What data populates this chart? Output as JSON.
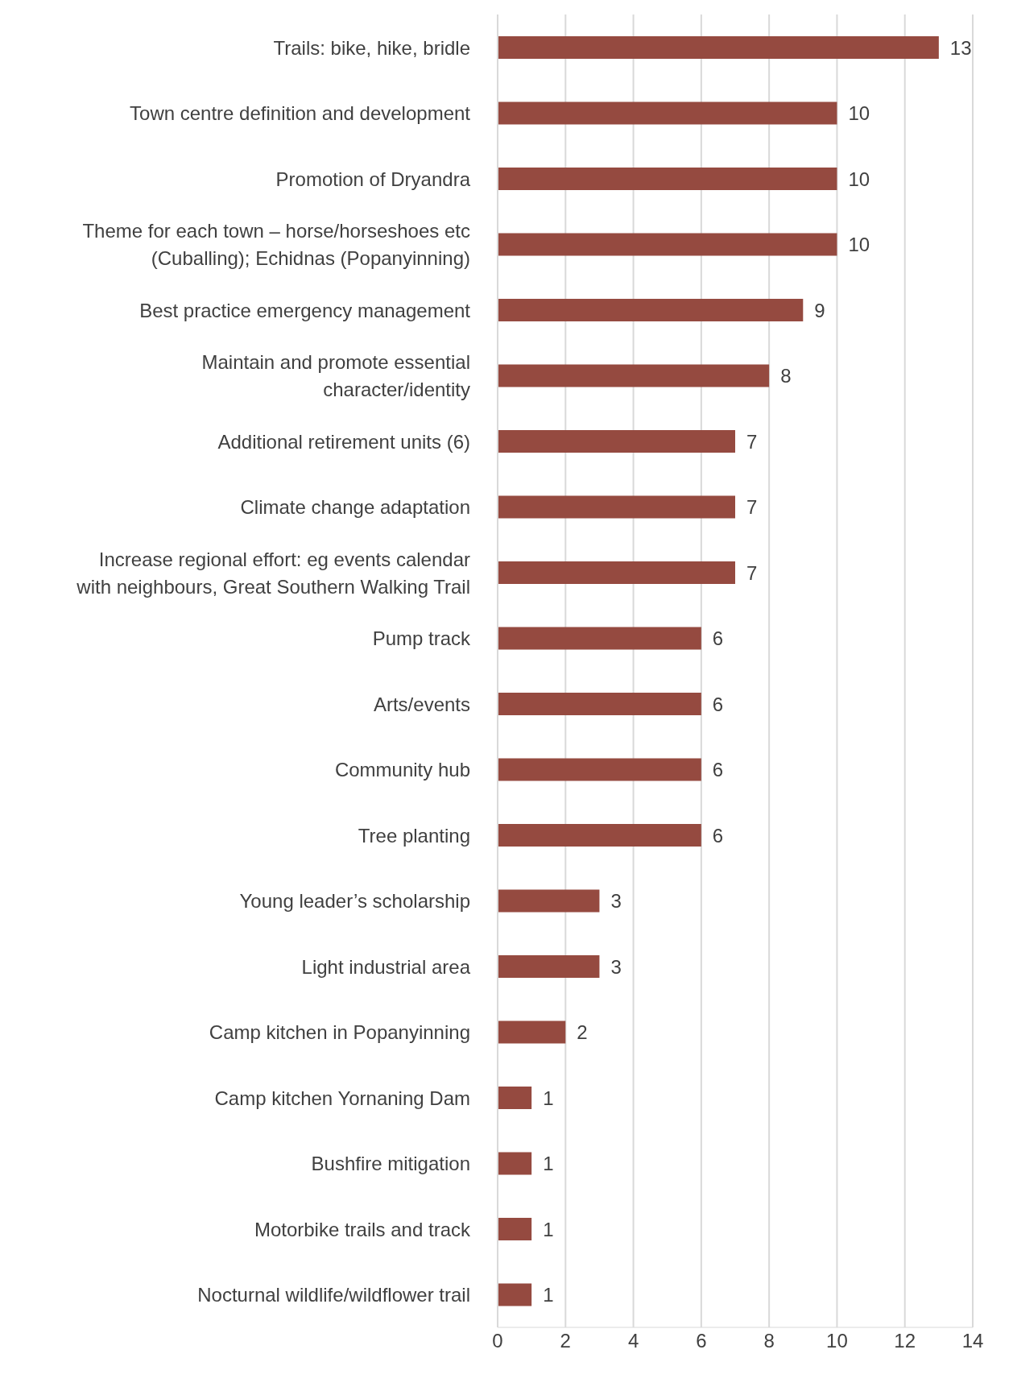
{
  "chart_data": {
    "type": "bar",
    "orientation": "horizontal",
    "categories": [
      "Trails: bike, hike, bridle",
      "Town centre definition and development",
      "Promotion of Dryandra",
      "Theme for each town – horse/horseshoes etc (Cuballing); Echidnas (Popanyinning)",
      "Best practice emergency management",
      "Maintain and promote essential character/identity",
      "Additional retirement units (6)",
      "Climate change adaptation",
      "Increase regional effort: eg events calendar with neighbours, Great Southern Walking Trail",
      "Pump track",
      "Arts/events",
      "Community hub",
      "Tree planting",
      "Young leader’s scholarship",
      "Light industrial area",
      "Camp kitchen in Popanyinning",
      "Camp kitchen Yornaning Dam",
      "Bushfire mitigation",
      "Motorbike trails and track",
      "Nocturnal wildlife/wildflower trail"
    ],
    "values": [
      13,
      10,
      10,
      10,
      9,
      8,
      7,
      7,
      7,
      6,
      6,
      6,
      6,
      3,
      3,
      2,
      1,
      1,
      1,
      1
    ],
    "color": "#954a40",
    "xlim": [
      0,
      14
    ],
    "xticks": [
      0,
      2,
      4,
      6,
      8,
      10,
      12,
      14
    ],
    "grid": "x",
    "data_labels": true
  }
}
